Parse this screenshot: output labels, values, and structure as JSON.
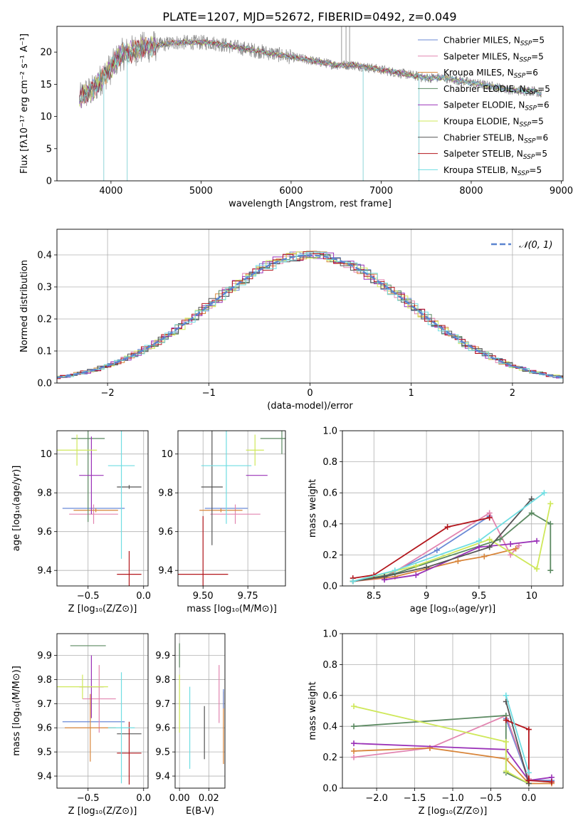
{
  "figure": {
    "title": "PLATE=1207, MJD=52672, FIBERID=0492, z=0.049"
  },
  "models": [
    {
      "name": "Chabrier MILES",
      "nssp": "5",
      "color": "#6a8ad6"
    },
    {
      "name": "Salpeter MILES",
      "nssp": "5",
      "color": "#e285b0"
    },
    {
      "name": "Kroupa MILES",
      "nssp": "6",
      "color": "#d8853a"
    },
    {
      "name": "Chabrier ELODIE",
      "nssp": "5",
      "color": "#5c8a62"
    },
    {
      "name": "Salpeter ELODIE",
      "nssp": "6",
      "color": "#9a32b8"
    },
    {
      "name": "Kroupa ELODIE",
      "nssp": "5",
      "color": "#cfe85a"
    },
    {
      "name": "Chabrier STELIB",
      "nssp": "6",
      "color": "#555555"
    },
    {
      "name": "Salpeter STELIB",
      "nssp": "5",
      "color": "#b3161c"
    },
    {
      "name": "Kroupa STELIB",
      "nssp": "5",
      "color": "#6fdde2"
    }
  ],
  "chart_data": [
    {
      "id": "spectrum",
      "type": "line",
      "xlabel": "wavelength [Angstrom, rest frame]",
      "ylabel": "Flux [fλ10⁻¹⁷ erg cm⁻² s⁻¹ A⁻¹]",
      "xlim": [
        3400,
        9020
      ],
      "ylim": [
        0,
        24
      ],
      "xticks": [
        4000,
        5000,
        6000,
        7000,
        8000,
        9000
      ],
      "yticks": [
        0,
        5,
        10,
        15,
        20
      ],
      "grid": false,
      "legend": "right",
      "data_color": "#888888",
      "continuum": {
        "x": [
          3650,
          3700,
          3800,
          3900,
          4000,
          4100,
          4200,
          4300,
          4500,
          4700,
          4900,
          5100,
          5300,
          5500,
          5700,
          5900,
          6100,
          6300,
          6500,
          6700,
          6900,
          7100,
          7300,
          7500,
          7700,
          7900,
          8100,
          8300,
          8500,
          8700,
          8780
        ],
        "y": [
          12.5,
          13.5,
          14.0,
          16.0,
          17.5,
          19.5,
          20.0,
          20.5,
          21.0,
          21.5,
          21.5,
          21.5,
          21.0,
          20.5,
          20.0,
          19.5,
          19.0,
          18.5,
          18.0,
          18.0,
          17.5,
          17.0,
          16.5,
          16.0,
          16.0,
          15.5,
          15.0,
          14.5,
          14.0,
          14.0,
          13.5
        ]
      }
    },
    {
      "id": "residuals",
      "type": "histogram",
      "xlabel": "(data-model)/error",
      "ylabel": "Normed distribution",
      "xlim": [
        -2.5,
        2.5
      ],
      "ylim": [
        0,
        0.48
      ],
      "xticks": [
        -2,
        -1,
        0,
        1,
        2
      ],
      "yticks": [
        0.0,
        0.1,
        0.2,
        0.3,
        0.4
      ],
      "grid": true,
      "legend": "top-right",
      "reference_label": "𝒩(0, 1)",
      "reference_color": "#5b84d0",
      "bin_width": 0.1
    },
    {
      "id": "age-vs-z",
      "type": "errorbar",
      "xlabel": "Z [log₁₀(Z/Z⊙)]",
      "ylabel": "age  [log₁₀(age/yr)]",
      "xlim": [
        -0.78,
        0.04
      ],
      "ylim": [
        9.32,
        10.12
      ],
      "xticks": [
        -0.5,
        0.0
      ],
      "xticklabels": [
        "−0.5",
        "0.0"
      ],
      "yticks": [
        9.4,
        9.6,
        9.8,
        10.0
      ],
      "grid": true,
      "points": [
        {
          "model": 0,
          "x": -0.45,
          "y": 9.72,
          "xerr": 0.28,
          "yerr": 0.0
        },
        {
          "model": 1,
          "x": -0.45,
          "y": 9.69,
          "xerr": 0.22,
          "yerr": 0.05
        },
        {
          "model": 2,
          "x": -0.43,
          "y": 9.71,
          "xerr": 0.2,
          "yerr": 0.01
        },
        {
          "model": 3,
          "x": -0.5,
          "y": 10.08,
          "xerr": 0.15,
          "yerr": 0.43
        },
        {
          "model": 4,
          "x": -0.47,
          "y": 9.89,
          "xerr": 0.11,
          "yerr": 0.2
        },
        {
          "model": 5,
          "x": -0.6,
          "y": 10.02,
          "xerr": 0.18,
          "yerr": 0.08
        },
        {
          "model": 6,
          "x": -0.13,
          "y": 9.83,
          "xerr": 0.11,
          "yerr": 0.01
        },
        {
          "model": 7,
          "x": -0.13,
          "y": 9.38,
          "xerr": 0.11,
          "yerr": 0.12
        },
        {
          "model": 8,
          "x": -0.2,
          "y": 9.94,
          "xerr": 0.12,
          "yerr": 0.48
        }
      ]
    },
    {
      "id": "age-vs-mass",
      "type": "errorbar",
      "xlabel": "mass [log₁₀(M/M⊙)]",
      "ylabel": "",
      "xlim": [
        9.36,
        9.96
      ],
      "ylim": [
        9.32,
        10.12
      ],
      "xticks": [
        9.5,
        9.75
      ],
      "xticklabels": [
        "9.50",
        "9.75"
      ],
      "yticks": [
        9.4,
        9.6,
        9.8,
        10.0
      ],
      "grid": true,
      "points": [
        {
          "model": 0,
          "x": 9.63,
          "y": 9.72,
          "xerr": 0.12,
          "yerr": 0.0
        },
        {
          "model": 1,
          "x": 9.68,
          "y": 9.69,
          "xerr": 0.14,
          "yerr": 0.05
        },
        {
          "model": 2,
          "x": 9.6,
          "y": 9.71,
          "xerr": 0.12,
          "yerr": 0.01
        },
        {
          "model": 3,
          "x": 9.94,
          "y": 10.08,
          "xerr": 0.12,
          "yerr": 0.08
        },
        {
          "model": 4,
          "x": 9.8,
          "y": 9.89,
          "xerr": 0.06,
          "yerr": 0.0
        },
        {
          "model": 5,
          "x": 9.79,
          "y": 10.02,
          "xerr": 0.05,
          "yerr": 0.08
        },
        {
          "model": 6,
          "x": 9.55,
          "y": 9.83,
          "xerr": 0.06,
          "yerr": 0.3
        },
        {
          "model": 7,
          "x": 9.5,
          "y": 9.38,
          "xerr": 0.14,
          "yerr": 0.3
        },
        {
          "model": 8,
          "x": 9.63,
          "y": 9.94,
          "xerr": 0.14,
          "yerr": 0.3
        }
      ]
    },
    {
      "id": "massweight-vs-age",
      "type": "line",
      "xlabel": "age  [log₁₀(age/yr)]",
      "ylabel": "mass weight",
      "xlim": [
        8.2,
        10.3
      ],
      "ylim": [
        0,
        1.0
      ],
      "xticks": [
        8.5,
        9.0,
        9.5,
        10.0
      ],
      "yticks": [
        0.0,
        0.2,
        0.4,
        0.6,
        0.8,
        1.0
      ],
      "grid": true,
      "series": [
        {
          "model": 0,
          "x": [
            8.3,
            8.6,
            9.1,
            9.6
          ],
          "y": [
            0.03,
            0.06,
            0.23,
            0.45
          ]
        },
        {
          "model": 1,
          "x": [
            8.3,
            8.6,
            9.6,
            9.8,
            9.88
          ],
          "y": [
            0.03,
            0.05,
            0.47,
            0.2,
            0.26
          ]
        },
        {
          "model": 2,
          "x": [
            8.3,
            8.7,
            9.3,
            9.55,
            9.85
          ],
          "y": [
            0.03,
            0.06,
            0.16,
            0.19,
            0.24
          ]
        },
        {
          "model": 3,
          "x": [
            8.3,
            8.7,
            9.7,
            10.0,
            10.18,
            10.18
          ],
          "y": [
            0.03,
            0.08,
            0.3,
            0.47,
            0.4,
            0.1
          ]
        },
        {
          "model": 4,
          "x": [
            8.6,
            8.9,
            9.5,
            9.8,
            10.05
          ],
          "y": [
            0.04,
            0.07,
            0.25,
            0.27,
            0.29
          ]
        },
        {
          "model": 5,
          "x": [
            8.3,
            8.9,
            9.6,
            10.05,
            10.18
          ],
          "y": [
            0.03,
            0.13,
            0.3,
            0.11,
            0.53
          ]
        },
        {
          "model": 6,
          "x": [
            8.3,
            8.6,
            9.0,
            9.6,
            10.0
          ],
          "y": [
            0.03,
            0.06,
            0.12,
            0.25,
            0.56
          ]
        },
        {
          "model": 7,
          "x": [
            8.3,
            8.5,
            9.2,
            9.6
          ],
          "y": [
            0.05,
            0.07,
            0.38,
            0.44
          ]
        },
        {
          "model": 8,
          "x": [
            8.3,
            8.7,
            9.5,
            10.12
          ],
          "y": [
            0.03,
            0.1,
            0.29,
            0.6
          ]
        }
      ]
    },
    {
      "id": "mass-vs-z",
      "type": "errorbar",
      "xlabel": "Z [log₁₀(Z/Z⊙)]",
      "ylabel": "mass [log₁₀(M/M⊙)]",
      "xlim": [
        -0.78,
        0.04
      ],
      "ylim": [
        9.35,
        9.99
      ],
      "xticks": [
        -0.5,
        0.0
      ],
      "xticklabels": [
        "−0.5",
        "0.0"
      ],
      "yticks": [
        9.4,
        9.5,
        9.6,
        9.7,
        9.8,
        9.9
      ],
      "grid": true,
      "points": [
        {
          "model": 0,
          "x": -0.45,
          "y": 9.625,
          "xerr": 0.28,
          "yerr": 0.0
        },
        {
          "model": 1,
          "x": -0.4,
          "y": 9.72,
          "xerr": 0.15,
          "yerr": 0.14
        },
        {
          "model": 2,
          "x": -0.48,
          "y": 9.6,
          "xerr": 0.23,
          "yerr": 0.14
        },
        {
          "model": 3,
          "x": -0.5,
          "y": 9.94,
          "xerr": 0.16,
          "yerr": 0.0
        },
        {
          "model": 4,
          "x": -0.47,
          "y": 9.77,
          "xerr": 0.11,
          "yerr": 0.13
        },
        {
          "model": 5,
          "x": -0.55,
          "y": 9.77,
          "xerr": 0.23,
          "yerr": 0.05
        },
        {
          "model": 6,
          "x": -0.13,
          "y": 9.575,
          "xerr": 0.11,
          "yerr": 0.0
        },
        {
          "model": 7,
          "x": -0.13,
          "y": 9.495,
          "xerr": 0.11,
          "yerr": 0.13
        },
        {
          "model": 8,
          "x": -0.2,
          "y": 9.6,
          "xerr": 0.12,
          "yerr": 0.23
        }
      ]
    },
    {
      "id": "mass-vs-ebv",
      "type": "errorbar",
      "xlabel": "E(B-V)",
      "ylabel": "",
      "xlim": [
        -0.003,
        0.031
      ],
      "ylim": [
        9.35,
        9.99
      ],
      "xticks": [
        0.0,
        0.02
      ],
      "xticklabels": [
        "0.00",
        "0.02"
      ],
      "yticks": [
        9.4,
        9.5,
        9.6,
        9.7,
        9.8,
        9.9
      ],
      "grid": true,
      "points": [
        {
          "model": 3,
          "x": 0.0,
          "y": 9.9,
          "xerr": 0.0,
          "yerr": 0.05
        },
        {
          "model": 5,
          "x": 0.0,
          "y": 9.7,
          "xerr": 0.0,
          "yerr": 0.12
        },
        {
          "model": 8,
          "x": 0.007,
          "y": 9.6,
          "xerr": 0.0,
          "yerr": 0.17
        },
        {
          "model": 6,
          "x": 0.017,
          "y": 9.58,
          "xerr": 0.0,
          "yerr": 0.11
        },
        {
          "model": 1,
          "x": 0.027,
          "y": 9.74,
          "xerr": 0.0,
          "yerr": 0.12
        },
        {
          "model": 2,
          "x": 0.03,
          "y": 9.6,
          "xerr": 0.0,
          "yerr": 0.15
        },
        {
          "model": 0,
          "x": 0.03,
          "y": 9.72,
          "xerr": 0.0,
          "yerr": 0.04
        }
      ]
    },
    {
      "id": "massweight-vs-z",
      "type": "line",
      "xlabel": "Z [log₁₀(Z/Z⊙)]",
      "ylabel": "mass weight",
      "xlim": [
        -2.45,
        0.45
      ],
      "ylim": [
        0,
        1.0
      ],
      "xticks": [
        -2.0,
        -1.5,
        -1.0,
        -0.5,
        0.0
      ],
      "xticklabels": [
        "−2.0",
        "−1.5",
        "−1.0",
        "−0.5",
        "0.0"
      ],
      "yticks": [
        0.0,
        0.2,
        0.4,
        0.6,
        0.8,
        1.0
      ],
      "grid": true,
      "series": [
        {
          "model": 0,
          "x": [
            -0.3,
            0.0,
            0.3
          ],
          "y": [
            0.45,
            0.05,
            0.05
          ]
        },
        {
          "model": 1,
          "x": [
            -2.3,
            -1.3,
            -0.3,
            0.0
          ],
          "y": [
            0.2,
            0.26,
            0.47,
            0.06
          ]
        },
        {
          "model": 2,
          "x": [
            -2.3,
            -1.3,
            -0.3,
            0.0,
            0.3
          ],
          "y": [
            0.24,
            0.26,
            0.19,
            0.03,
            0.03
          ]
        },
        {
          "model": 3,
          "x": [
            -2.3,
            -0.3,
            -0.3,
            0.0
          ],
          "y": [
            0.4,
            0.47,
            0.1,
            0.03
          ]
        },
        {
          "model": 4,
          "x": [
            -2.3,
            -0.3,
            0.0,
            0.3
          ],
          "y": [
            0.29,
            0.25,
            0.05,
            0.07
          ]
        },
        {
          "model": 5,
          "x": [
            -2.3,
            -0.3,
            -0.3,
            0.0
          ],
          "y": [
            0.53,
            0.3,
            0.11,
            0.03
          ]
        },
        {
          "model": 6,
          "x": [
            -0.3,
            0.0
          ],
          "y": [
            0.56,
            0.03
          ]
        },
        {
          "model": 7,
          "x": [
            -0.3,
            0.0,
            0.0,
            0.3
          ],
          "y": [
            0.44,
            0.38,
            0.05,
            0.04
          ]
        },
        {
          "model": 8,
          "x": [
            -0.3,
            0.0
          ],
          "y": [
            0.6,
            0.1
          ]
        }
      ]
    }
  ]
}
